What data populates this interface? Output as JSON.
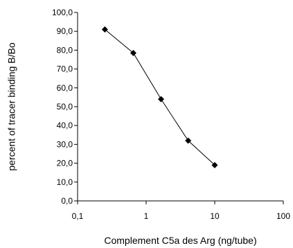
{
  "chart_data": {
    "type": "scatter",
    "xlabel": "Complement C5a des Arg (ng/tube)",
    "ylabel": "percent of tracer binding B/Bo",
    "x_scale": "log",
    "xlim": [
      0.1,
      100
    ],
    "ylim": [
      0,
      100
    ],
    "x_tick_labels": [
      "0,1",
      "1",
      "10",
      "100"
    ],
    "y_tick_labels": [
      "0,0",
      "10,0",
      "20,0",
      "30,0",
      "40,0",
      "50,0",
      "60,0",
      "70,0",
      "80,0",
      "90,0",
      "100,0"
    ],
    "grid": false,
    "legend": false,
    "series": [
      {
        "marker": "diamond",
        "line": "straight-segments",
        "x": [
          0.25,
          0.65,
          1.65,
          4.1,
          10.0
        ],
        "y": [
          91.0,
          78.5,
          54.0,
          32.0,
          19.0
        ]
      }
    ]
  },
  "colors": {
    "axis": "#000000",
    "series": "#000000",
    "background": "#ffffff"
  }
}
